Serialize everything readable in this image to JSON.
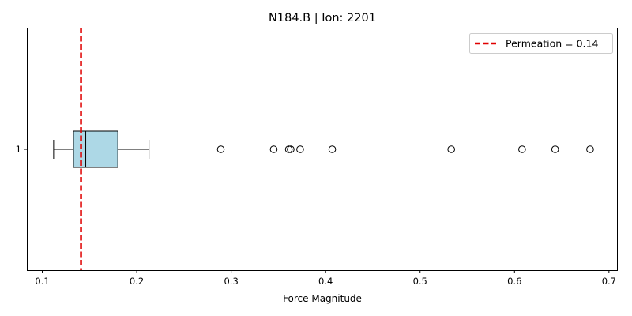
{
  "chart_data": {
    "type": "box",
    "orientation": "horizontal",
    "title": "N184.B | Ion: 2201",
    "xlabel": "Force Magnitude",
    "ylabel": "",
    "xlim": [
      0.0845,
      0.7085
    ],
    "xticks": [
      0.1,
      0.2,
      0.3,
      0.4,
      0.5,
      0.6,
      0.7
    ],
    "xtick_labels": [
      "0.1",
      "0.2",
      "0.3",
      "0.4",
      "0.5",
      "0.6",
      "0.7"
    ],
    "ytick_labels": [
      "1"
    ],
    "grid": false,
    "legend_position": "top-right",
    "box": {
      "category": "1",
      "whisker_low": 0.112,
      "q1": 0.133,
      "median": 0.146,
      "q3": 0.18,
      "whisker_high": 0.213,
      "fliers": [
        0.289,
        0.345,
        0.361,
        0.363,
        0.373,
        0.407,
        0.533,
        0.608,
        0.643,
        0.68
      ],
      "face_color": "#add8e6",
      "edge_color": "#000000"
    },
    "reference_line": {
      "value": 0.141,
      "label": "Permeation = 0.14",
      "color": "#e00000",
      "style": "dashed"
    }
  }
}
